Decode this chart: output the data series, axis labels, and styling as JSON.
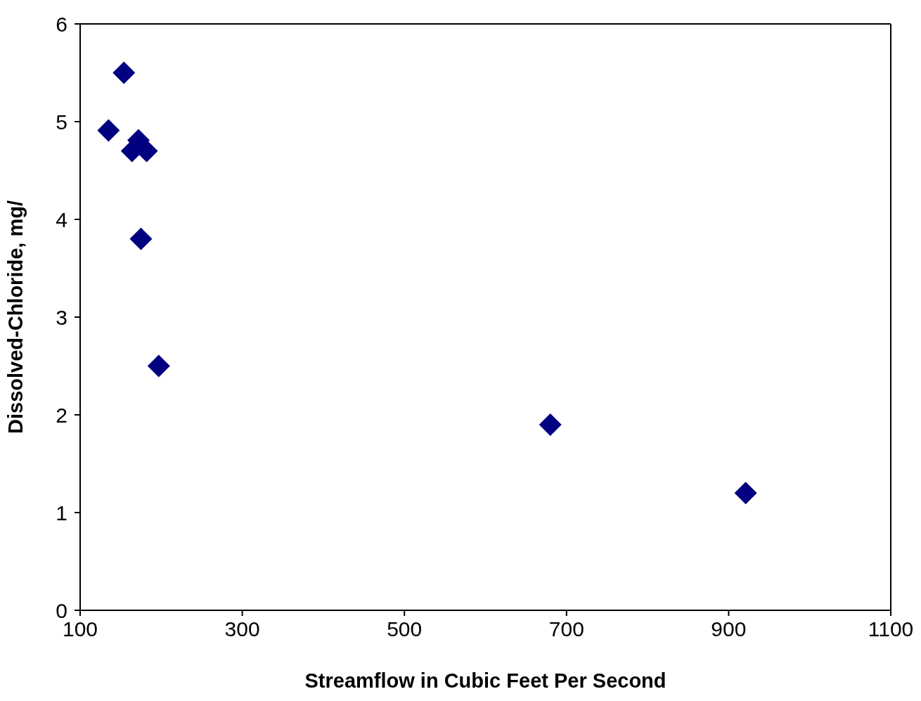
{
  "chart_data": {
    "type": "scatter",
    "xlabel": "Streamflow in Cubic Feet Per Second",
    "ylabel": "Dissolved-Chloride, mg/",
    "x": [
      154,
      135,
      172,
      164,
      182,
      175,
      197,
      680,
      921
    ],
    "values": [
      5.5,
      4.91,
      4.81,
      4.7,
      4.7,
      3.8,
      2.5,
      1.9,
      1.2
    ],
    "color": "#000080",
    "marker": "diamond",
    "xlim": [
      100,
      1100
    ],
    "xticks": [
      100,
      300,
      500,
      700,
      900,
      1100
    ],
    "ylim": [
      0,
      6
    ],
    "yticks": [
      0,
      1,
      2,
      3,
      4,
      5,
      6
    ],
    "grid": false
  }
}
